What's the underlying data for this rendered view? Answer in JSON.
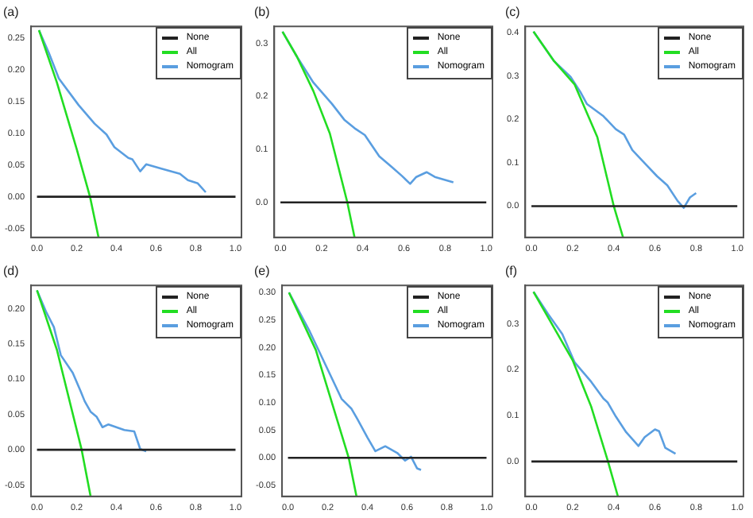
{
  "chart_data": [
    {
      "type": "line",
      "title": "(a)",
      "xlim": [
        -0.03,
        1.03
      ],
      "ylim": [
        -0.064,
        0.268
      ],
      "xticks": [
        {
          "value": 0,
          "label": "0.0"
        },
        {
          "value": 0.2,
          "label": "0.2"
        },
        {
          "value": 0.4,
          "label": "0.4"
        },
        {
          "value": 0.6,
          "label": "0.6"
        },
        {
          "value": 0.8,
          "label": "0.8"
        },
        {
          "value": 1,
          "label": "1.0"
        }
      ],
      "yticks": [
        {
          "value": -0.05,
          "label": "-0.05"
        },
        {
          "value": 0,
          "label": "0.00"
        },
        {
          "value": 0.05,
          "label": "0.05"
        },
        {
          "value": 0.1,
          "label": "0.10"
        },
        {
          "value": 0.15,
          "label": "0.15"
        },
        {
          "value": 0.2,
          "label": "0.20"
        },
        {
          "value": 0.25,
          "label": "0.25"
        }
      ],
      "grid": false,
      "legend": "top right",
      "marker": "none",
      "line_style": "solid",
      "series": [
        {
          "name": "None",
          "color": "#222222",
          "x": [
            0,
            1
          ],
          "values": [
            0,
            0
          ]
        },
        {
          "name": "All",
          "color": "#22dd22",
          "x": [
            0.01,
            0.1,
            0.2,
            0.267,
            0.31
          ],
          "values": [
            0.262,
            0.18,
            0.075,
            0,
            -0.064
          ]
        },
        {
          "name": "Nomogram",
          "color": "#5a9ee0",
          "x": [
            0.01,
            0.06,
            0.11,
            0.21,
            0.29,
            0.35,
            0.39,
            0.46,
            0.48,
            0.52,
            0.55,
            0.63,
            0.72,
            0.76,
            0.81,
            0.85
          ],
          "values": [
            0.262,
            0.226,
            0.186,
            0.144,
            0.115,
            0.098,
            0.078,
            0.061,
            0.059,
            0.04,
            0.051,
            0.044,
            0.036,
            0.026,
            0.021,
            0.007
          ]
        }
      ]
    },
    {
      "type": "line",
      "title": "(b)",
      "xlim": [
        -0.03,
        1.03
      ],
      "ylim": [
        -0.066,
        0.332
      ],
      "xticks": [
        {
          "value": 0,
          "label": "0.0"
        },
        {
          "value": 0.2,
          "label": "0.2"
        },
        {
          "value": 0.4,
          "label": "0.4"
        },
        {
          "value": 0.6,
          "label": "0.6"
        },
        {
          "value": 0.8,
          "label": "0.8"
        },
        {
          "value": 1,
          "label": "1.0"
        }
      ],
      "yticks": [
        {
          "value": 0,
          "label": "0.0"
        },
        0.1,
        0.2,
        0.3
      ],
      "grid": false,
      "legend": "top right",
      "marker": "none",
      "line_style": "solid",
      "series": [
        {
          "name": "None",
          "color": "#222222",
          "x": [
            0,
            1
          ],
          "values": [
            0,
            0
          ]
        },
        {
          "name": "All",
          "color": "#22dd22",
          "x": [
            0.01,
            0.08,
            0.16,
            0.24,
            0.325,
            0.36
          ],
          "values": [
            0.322,
            0.275,
            0.21,
            0.13,
            0,
            -0.066
          ]
        },
        {
          "name": "Nomogram",
          "color": "#5a9ee0",
          "x": [
            0.01,
            0.08,
            0.16,
            0.25,
            0.31,
            0.36,
            0.41,
            0.48,
            0.54,
            0.59,
            0.63,
            0.66,
            0.71,
            0.75,
            0.84
          ],
          "values": [
            0.322,
            0.275,
            0.226,
            0.186,
            0.156,
            0.14,
            0.127,
            0.087,
            0.067,
            0.05,
            0.035,
            0.048,
            0.057,
            0.048,
            0.038
          ]
        }
      ]
    },
    {
      "type": "line",
      "title": "(c)",
      "xlim": [
        -0.03,
        1.03
      ],
      "ylim": [
        -0.072,
        0.414
      ],
      "xticks": [
        {
          "value": 0,
          "label": "0.0"
        },
        {
          "value": 0.2,
          "label": "0.2"
        },
        {
          "value": 0.4,
          "label": "0.4"
        },
        {
          "value": 0.6,
          "label": "0.6"
        },
        {
          "value": 0.8,
          "label": "0.8"
        },
        {
          "value": 1,
          "label": "1.0"
        }
      ],
      "yticks": [
        {
          "value": 0,
          "label": "0.0"
        },
        0.1,
        0.2,
        0.3,
        0.4
      ],
      "grid": false,
      "legend": "top right",
      "marker": "none",
      "line_style": "solid",
      "series": [
        {
          "name": "None",
          "color": "#222222",
          "x": [
            0,
            1
          ],
          "values": [
            0,
            0
          ]
        },
        {
          "name": "All",
          "color": "#22dd22",
          "x": [
            0.01,
            0.11,
            0.21,
            0.32,
            0.4,
            0.445
          ],
          "values": [
            0.402,
            0.334,
            0.28,
            0.159,
            0,
            -0.072
          ]
        },
        {
          "name": "Nomogram",
          "color": "#5a9ee0",
          "x": [
            0.01,
            0.11,
            0.19,
            0.24,
            0.27,
            0.35,
            0.41,
            0.45,
            0.49,
            0.55,
            0.61,
            0.66,
            0.71,
            0.74,
            0.77,
            0.8
          ],
          "values": [
            0.402,
            0.334,
            0.298,
            0.261,
            0.235,
            0.207,
            0.177,
            0.165,
            0.129,
            0.099,
            0.069,
            0.048,
            0.012,
            -0.004,
            0.02,
            0.03
          ]
        }
      ]
    },
    {
      "type": "line",
      "title": "(d)",
      "xlim": [
        -0.03,
        1.03
      ],
      "ylim": [
        -0.066,
        0.233
      ],
      "xticks": [
        {
          "value": 0,
          "label": "0.0"
        },
        {
          "value": 0.2,
          "label": "0.2"
        },
        {
          "value": 0.4,
          "label": "0.4"
        },
        {
          "value": 0.6,
          "label": "0.6"
        },
        {
          "value": 0.8,
          "label": "0.8"
        },
        {
          "value": 1,
          "label": "1.0"
        }
      ],
      "yticks": [
        {
          "value": -0.05,
          "label": "-0.05"
        },
        {
          "value": 0,
          "label": "0.00"
        },
        {
          "value": 0.05,
          "label": "0.05"
        },
        {
          "value": 0.1,
          "label": "0.10"
        },
        {
          "value": 0.15,
          "label": "0.15"
        },
        {
          "value": 0.2,
          "label": "0.20"
        }
      ],
      "grid": false,
      "legend": "top right",
      "marker": "none",
      "line_style": "solid",
      "series": [
        {
          "name": "None",
          "color": "#222222",
          "x": [
            0,
            1
          ],
          "values": [
            0,
            0
          ]
        },
        {
          "name": "All",
          "color": "#22dd22",
          "x": [
            0,
            0.1,
            0.225,
            0.27
          ],
          "values": [
            0.226,
            0.142,
            0,
            -0.066
          ]
        },
        {
          "name": "Nomogram",
          "color": "#5a9ee0",
          "x": [
            0,
            0.045,
            0.085,
            0.12,
            0.18,
            0.22,
            0.24,
            0.27,
            0.3,
            0.33,
            0.36,
            0.44,
            0.49,
            0.52,
            0.55
          ],
          "values": [
            0.226,
            0.196,
            0.174,
            0.134,
            0.109,
            0.083,
            0.069,
            0.054,
            0.047,
            0.032,
            0.036,
            0.028,
            0.026,
            0.001,
            -0.002
          ]
        }
      ]
    },
    {
      "type": "line",
      "title": "(e)",
      "xlim": [
        -0.03,
        1.03
      ],
      "ylim": [
        -0.07,
        0.313
      ],
      "xticks": [
        {
          "value": 0,
          "label": "0.0"
        },
        {
          "value": 0.2,
          "label": "0.2"
        },
        {
          "value": 0.4,
          "label": "0.4"
        },
        {
          "value": 0.6,
          "label": "0.6"
        },
        {
          "value": 0.8,
          "label": "0.8"
        },
        {
          "value": 1,
          "label": "1.0"
        }
      ],
      "yticks": [
        {
          "value": -0.05,
          "label": "-0.05"
        },
        {
          "value": 0,
          "label": "0.00"
        },
        {
          "value": 0.05,
          "label": "0.05"
        },
        {
          "value": 0.1,
          "label": "0.10"
        },
        {
          "value": 0.15,
          "label": "0.15"
        },
        {
          "value": 0.2,
          "label": "0.20"
        },
        {
          "value": 0.25,
          "label": "0.25"
        },
        {
          "value": 0.3,
          "label": "0.30"
        }
      ],
      "grid": false,
      "legend": "top right",
      "marker": "none",
      "line_style": "solid",
      "series": [
        {
          "name": "None",
          "color": "#222222",
          "x": [
            0,
            1
          ],
          "values": [
            0,
            0
          ]
        },
        {
          "name": "All",
          "color": "#22dd22",
          "x": [
            0.005,
            0.14,
            0.306,
            0.345
          ],
          "values": [
            0.3,
            0.196,
            0,
            -0.07
          ]
        },
        {
          "name": "Nomogram",
          "color": "#5a9ee0",
          "x": [
            0.005,
            0.11,
            0.19,
            0.27,
            0.32,
            0.35,
            0.4,
            0.44,
            0.49,
            0.55,
            0.59,
            0.62,
            0.65,
            0.67
          ],
          "values": [
            0.3,
            0.229,
            0.168,
            0.107,
            0.089,
            0.07,
            0.037,
            0.012,
            0.021,
            0.009,
            -0.005,
            0.002,
            -0.019,
            -0.022
          ]
        }
      ]
    },
    {
      "type": "line",
      "title": "(f)",
      "xlim": [
        -0.03,
        1.03
      ],
      "ylim": [
        -0.076,
        0.384
      ],
      "xticks": [
        {
          "value": 0,
          "label": "0.0"
        },
        {
          "value": 0.2,
          "label": "0.2"
        },
        {
          "value": 0.4,
          "label": "0.4"
        },
        {
          "value": 0.6,
          "label": "0.6"
        },
        {
          "value": 0.8,
          "label": "0.8"
        },
        {
          "value": 1,
          "label": "1.0"
        }
      ],
      "yticks": [
        {
          "value": 0,
          "label": "0.0"
        },
        0.1,
        0.2,
        0.3
      ],
      "grid": false,
      "legend": "top right",
      "marker": "none",
      "line_style": "solid",
      "series": [
        {
          "name": "None",
          "color": "#222222",
          "x": [
            0,
            1
          ],
          "values": [
            0,
            0
          ]
        },
        {
          "name": "All",
          "color": "#22dd22",
          "x": [
            0.01,
            0.2,
            0.29,
            0.372,
            0.42
          ],
          "values": [
            0.37,
            0.221,
            0.12,
            0,
            -0.076
          ]
        },
        {
          "name": "Nomogram",
          "color": "#5a9ee0",
          "x": [
            0.01,
            0.08,
            0.15,
            0.21,
            0.29,
            0.35,
            0.37,
            0.41,
            0.46,
            0.52,
            0.55,
            0.6,
            0.62,
            0.65,
            0.7
          ],
          "values": [
            0.37,
            0.322,
            0.278,
            0.216,
            0.174,
            0.137,
            0.129,
            0.098,
            0.064,
            0.034,
            0.053,
            0.07,
            0.066,
            0.03,
            0.017
          ]
        }
      ]
    }
  ]
}
